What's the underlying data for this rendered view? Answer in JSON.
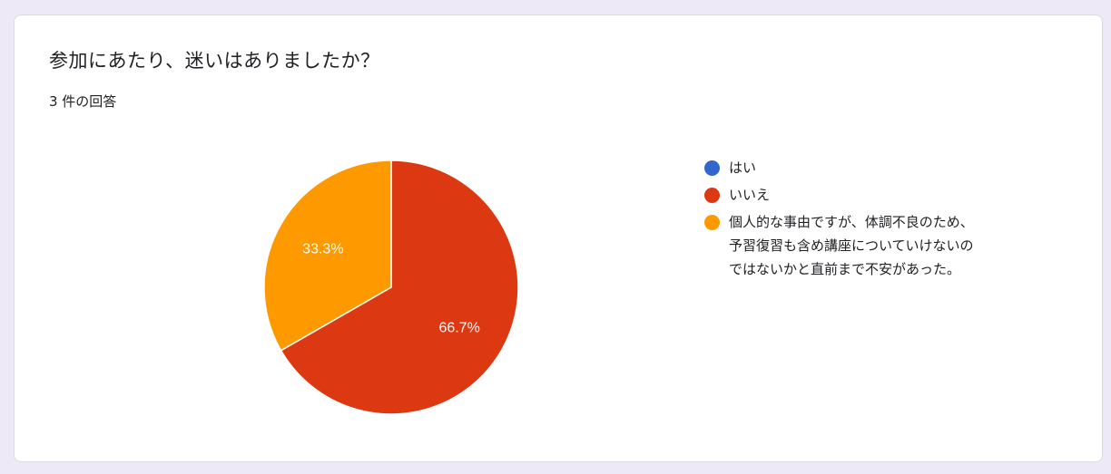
{
  "question": {
    "title": "参加にあたり、迷いはありましたか？",
    "response_count": "3 件の回答"
  },
  "colors": {
    "background": "#ede9f7",
    "card": "#ffffff",
    "slice_border": "#ffffff"
  },
  "chart_data": {
    "type": "pie",
    "start": "top, clockwise",
    "series": [
      {
        "label": "はい",
        "value": 0,
        "percent_label": "",
        "color": "#3366cc"
      },
      {
        "label": "いいえ",
        "value": 66.7,
        "percent_label": "66.7%",
        "color": "#dc3912"
      },
      {
        "label": "個人的な事由ですが、体調不良のため、\n予習復習も含め講座についていけないの\nではないかと直前まで不安があった。",
        "value": 33.3,
        "percent_label": "33.3%",
        "color": "#ff9900"
      }
    ],
    "legend_position": "right"
  }
}
